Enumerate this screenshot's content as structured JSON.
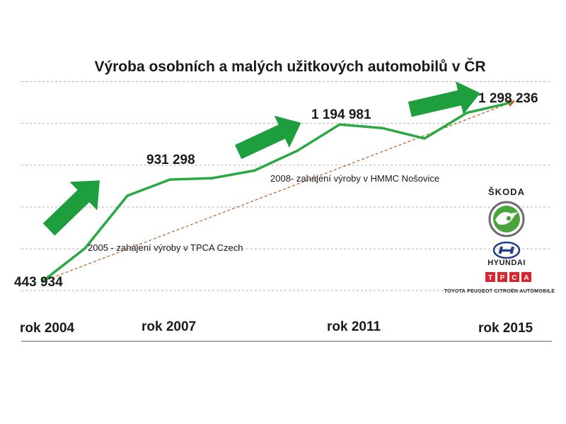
{
  "title": "Výroba osobních a malých užitkových automobilů  v ČR",
  "colors": {
    "line": "#2aa842",
    "arrow": "#1e9e3c",
    "trend": "#c0622d",
    "grid": "#a6a6a6",
    "text": "#1a1a1a",
    "tpca_red": "#d9262e",
    "hyundai_blue": "#1f3c8c"
  },
  "value_labels": [
    "443 934",
    "931 298",
    "1 194 981",
    "1 298 236"
  ],
  "year_labels": [
    "rok 2004",
    "rok 2007",
    "rok 2011",
    "rok 2015"
  ],
  "annotations": {
    "tpca": "2005 - zahájení výroby v TPCA Czech",
    "hmmc": "2008- zahájení výroby v HMMC Nošovice"
  },
  "logos": {
    "skoda_text": "ŠKODA",
    "hyundai_text": "HYUNDAI",
    "tpca_letters": [
      "T",
      "P",
      "C",
      "A"
    ],
    "tpca_caption": "TOYOTA PEUGEOT CITROËN AUTOMOBILE"
  },
  "chart_data": {
    "type": "line",
    "title": "Výroba osobních a malých užitkových automobilů  v ČR",
    "x": [
      2004,
      2005,
      2006,
      2007,
      2008,
      2009,
      2010,
      2011,
      2012,
      2013,
      2014,
      2015
    ],
    "series": [
      {
        "values": [
          443934,
          602000,
          854000,
          931298,
          938000,
          975000,
          1069000,
          1194981,
          1178000,
          1128000,
          1251000,
          1298236
        ]
      }
    ],
    "trend": {
      "style": "dashed",
      "from": [
        2004,
        443934
      ],
      "to": [
        2015,
        1298236
      ]
    },
    "ylim": [
      350000,
      1500000
    ],
    "grid": true,
    "xlabel": "",
    "ylabel": ""
  }
}
